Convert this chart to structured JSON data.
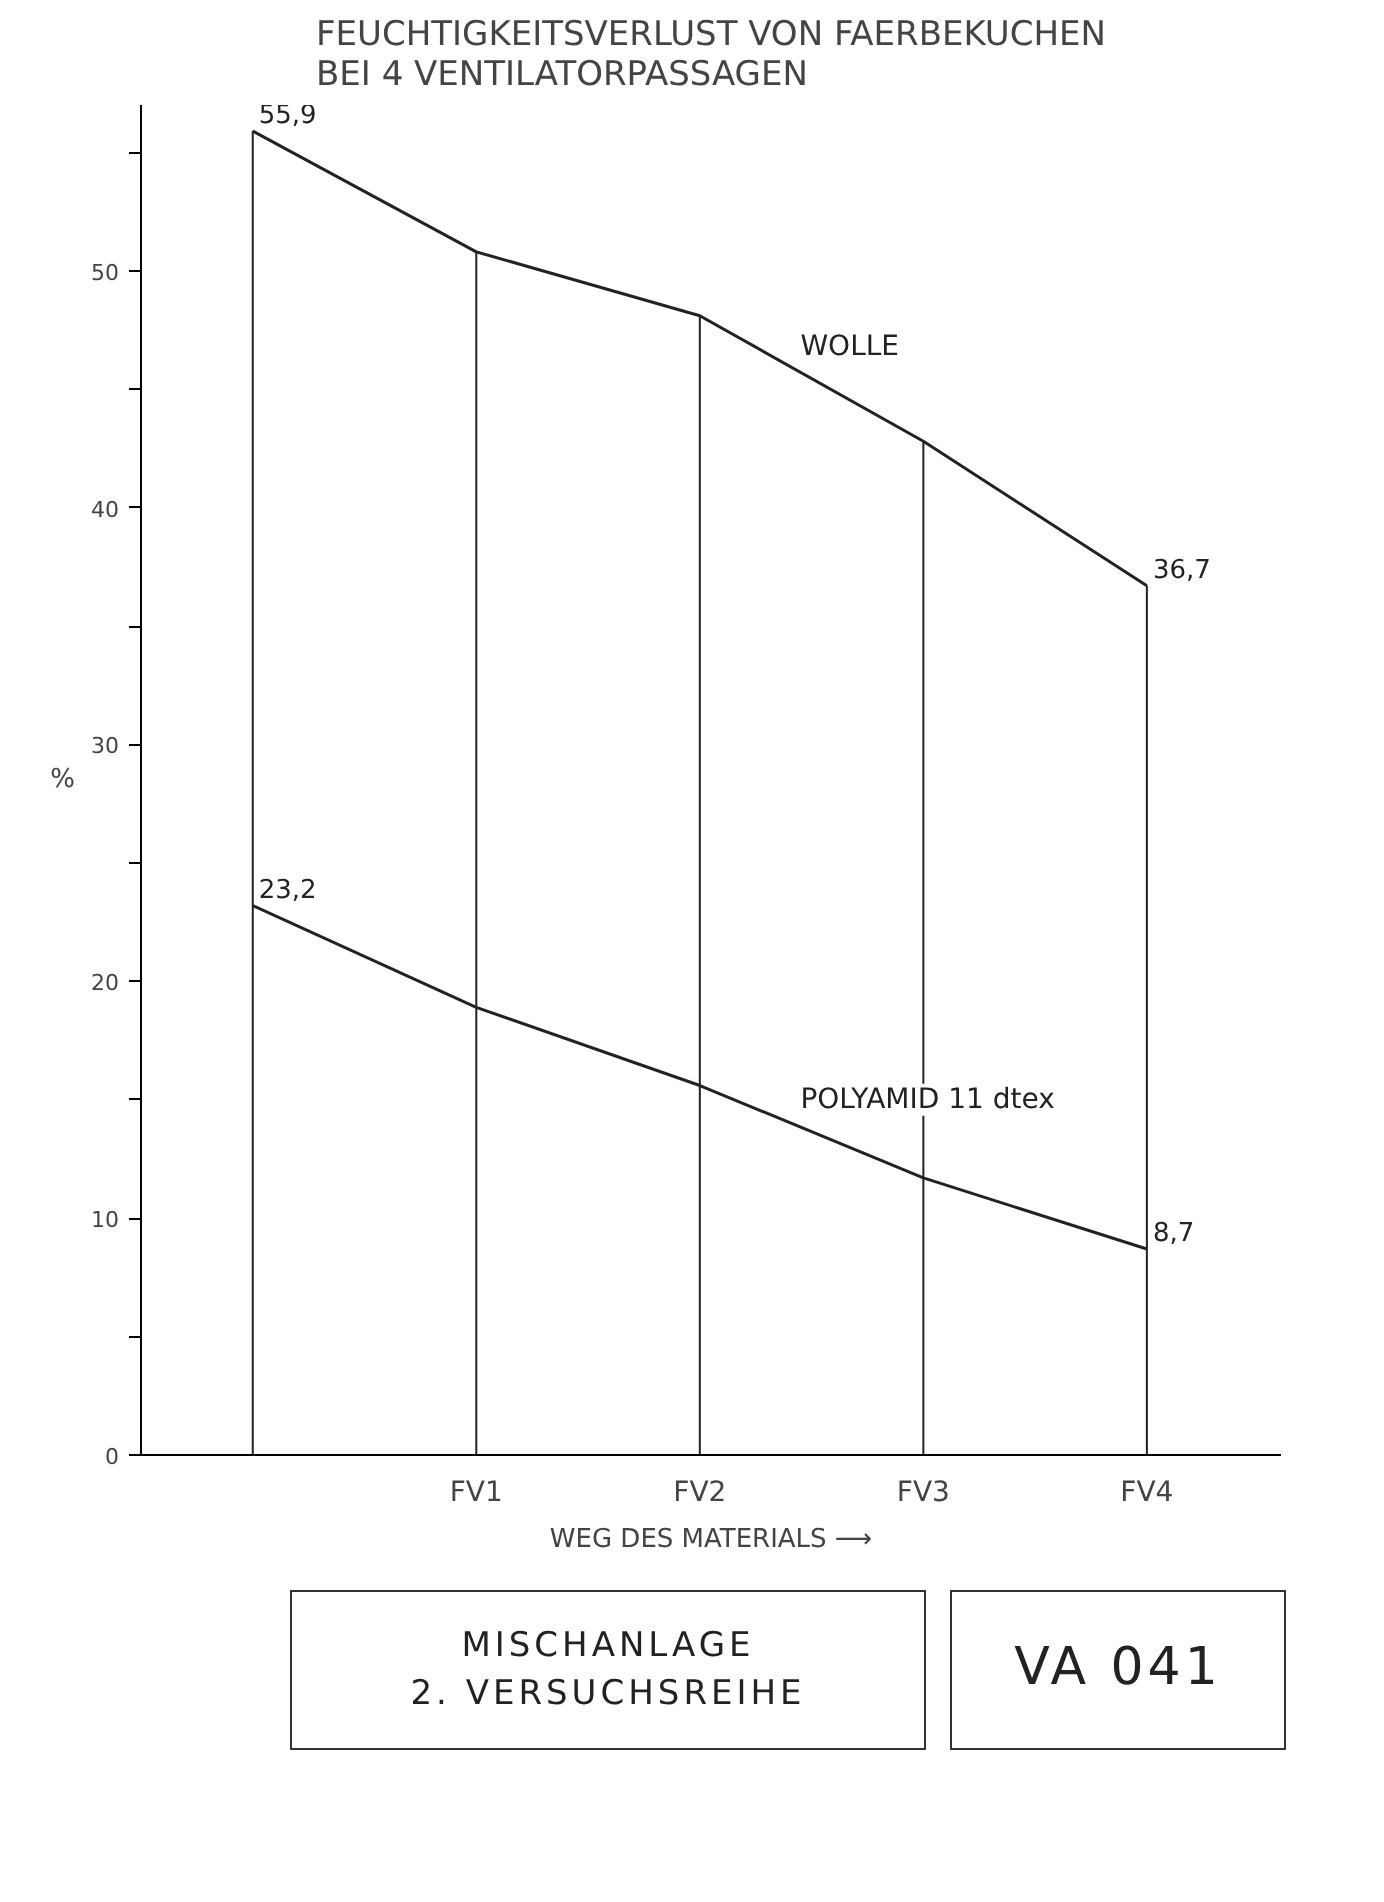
{
  "chart_data": {
    "type": "line",
    "title": "FEUCHTIGKEITSVERLUST VON FAERBEKUCHEN\nBEI 4 VENTILATORPASSAGEN",
    "ylabel": "%",
    "xlabel": "WEG DES MATERIALS ⟶",
    "categories": [
      null,
      "FV1",
      "FV2",
      "FV3",
      "FV4"
    ],
    "series": [
      {
        "name": "WOLLE",
        "color": "#222222",
        "values": [
          55.9,
          50.8,
          48.1,
          42.8,
          36.7
        ],
        "value_labels": [
          "55,9",
          null,
          null,
          null,
          "36,7"
        ]
      },
      {
        "name": "POLYAMID 11 dtex",
        "color": "#222222",
        "values": [
          23.2,
          18.9,
          15.6,
          11.7,
          8.7
        ],
        "value_labels": [
          "23,2",
          null,
          null,
          null,
          "8,7"
        ]
      }
    ],
    "ylim": [
      0,
      57
    ],
    "yticks": [
      0,
      {
        "value": 5,
        "label": null
      },
      10,
      {
        "value": 15,
        "label": null
      },
      20,
      {
        "value": 25,
        "label": null
      },
      30,
      {
        "value": 35,
        "label": null
      },
      40,
      {
        "value": 45,
        "label": null
      },
      50,
      {
        "value": 55,
        "label": null
      }
    ],
    "grid": "x",
    "marker": "none",
    "line_style": "solid",
    "annotations": [
      "MISCHANLAGE\n2. VERSUCHSREIHE",
      "VA 041"
    ]
  }
}
